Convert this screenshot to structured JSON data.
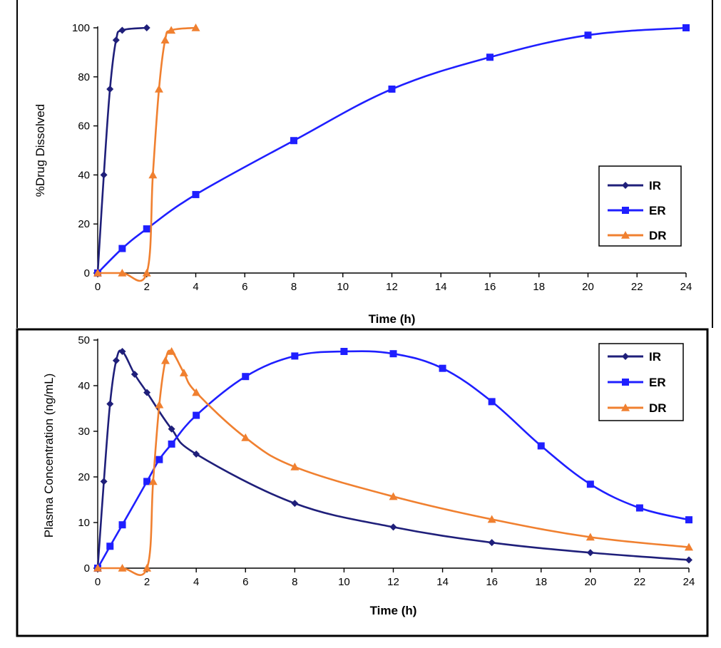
{
  "colors": {
    "IR": "#1f1f7a",
    "ER": "#1f1fff",
    "DR": "#f08030"
  },
  "chart_data": [
    {
      "type": "line",
      "xlabel": "Time (h)",
      "ylabel": "%Drug Dissolved",
      "xlim": [
        0,
        24
      ],
      "ylim": [
        0,
        100
      ],
      "x_ticks": [
        0,
        2,
        4,
        6,
        8,
        10,
        12,
        14,
        16,
        18,
        20,
        22,
        24
      ],
      "y_ticks": [
        0,
        20,
        40,
        60,
        80,
        100
      ],
      "legend_position": "right",
      "grid": false,
      "series": [
        {
          "name": "IR",
          "marker": "diamond",
          "points": [
            [
              0,
              0
            ],
            [
              0.25,
              40
            ],
            [
              0.5,
              75
            ],
            [
              0.75,
              95
            ],
            [
              1,
              99
            ],
            [
              2,
              100
            ]
          ]
        },
        {
          "name": "ER",
          "marker": "square",
          "points": [
            [
              0,
              0
            ],
            [
              1,
              10
            ],
            [
              2,
              18
            ],
            [
              4,
              32
            ],
            [
              8,
              54
            ],
            [
              12,
              75
            ],
            [
              16,
              88
            ],
            [
              20,
              97
            ],
            [
              24,
              100
            ]
          ]
        },
        {
          "name": "DR",
          "marker": "triangle",
          "points": [
            [
              0,
              0
            ],
            [
              1,
              0
            ],
            [
              2,
              0
            ],
            [
              2.25,
              40
            ],
            [
              2.5,
              75
            ],
            [
              2.75,
              95
            ],
            [
              3,
              99
            ],
            [
              4,
              100
            ]
          ]
        }
      ]
    },
    {
      "type": "line",
      "xlabel": "Time (h)",
      "ylabel": "Plasma Concentration (ng/mL)",
      "xlim": [
        0,
        24
      ],
      "ylim": [
        0,
        50
      ],
      "x_ticks": [
        0,
        2,
        4,
        6,
        8,
        10,
        12,
        14,
        16,
        18,
        20,
        22,
        24
      ],
      "y_ticks": [
        0,
        10,
        20,
        30,
        40,
        50
      ],
      "legend_position": "top-right",
      "grid": false,
      "series": [
        {
          "name": "IR",
          "marker": "diamond",
          "points": [
            [
              0,
              0
            ],
            [
              0.25,
              19
            ],
            [
              0.5,
              36
            ],
            [
              0.75,
              45.5
            ],
            [
              1,
              47.5
            ],
            [
              1.5,
              42.5
            ],
            [
              2,
              38.5
            ],
            [
              3,
              30.5
            ],
            [
              4,
              25
            ],
            [
              8,
              14.2
            ],
            [
              12,
              9
            ],
            [
              16,
              5.6
            ],
            [
              20,
              3.4
            ],
            [
              24,
              1.8
            ]
          ]
        },
        {
          "name": "ER",
          "marker": "square",
          "points": [
            [
              0,
              0
            ],
            [
              0.5,
              4.8
            ],
            [
              1,
              9.5
            ],
            [
              2,
              19
            ],
            [
              2.5,
              23.8
            ],
            [
              3,
              27.2
            ],
            [
              4,
              33.5
            ],
            [
              6,
              42
            ],
            [
              8,
              46.5
            ],
            [
              10,
              47.5
            ],
            [
              12,
              47
            ],
            [
              14,
              43.8
            ],
            [
              16,
              36.5
            ],
            [
              18,
              26.8
            ],
            [
              20,
              18.4
            ],
            [
              22,
              13.2
            ],
            [
              24,
              10.6
            ]
          ]
        },
        {
          "name": "DR",
          "marker": "triangle",
          "points": [
            [
              0,
              0
            ],
            [
              1,
              0
            ],
            [
              2,
              0
            ],
            [
              2.25,
              19
            ],
            [
              2.5,
              35.8
            ],
            [
              2.75,
              45.5
            ],
            [
              3,
              47.5
            ],
            [
              3.5,
              42.8
            ],
            [
              4,
              38.5
            ],
            [
              6,
              28.6
            ],
            [
              8,
              22.2
            ],
            [
              12,
              15.7
            ],
            [
              16,
              10.7
            ],
            [
              20,
              6.8
            ],
            [
              24,
              4.6
            ]
          ]
        }
      ]
    }
  ]
}
